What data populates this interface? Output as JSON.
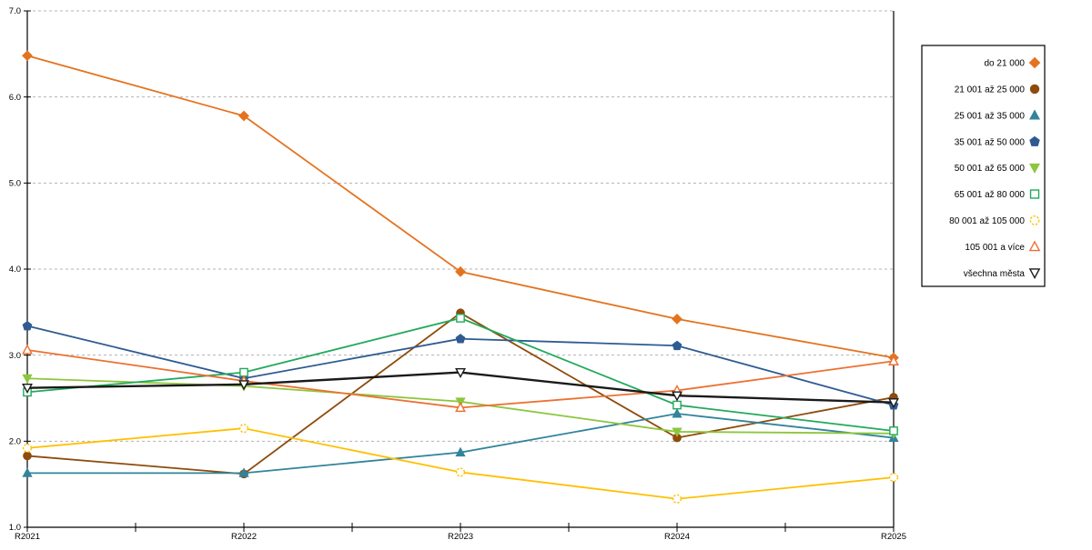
{
  "chart_data": {
    "type": "line",
    "title": "",
    "xlabel": "",
    "ylabel": "",
    "x_categories": [
      "R2021",
      "R2022",
      "R2023",
      "R2024",
      "R2025"
    ],
    "y_tick_labels": [
      "1.0",
      "2.0",
      "3.0",
      "4.0",
      "5.0",
      "6.0",
      "7.0"
    ],
    "ylim": [
      1.0,
      7.0
    ],
    "grid": "horizontal-dashed",
    "legend_position": "right",
    "gridline_color": "#b3b3b3",
    "axis_color": "#000000",
    "series": [
      {
        "name": "do 21 000",
        "color": "#e4731f",
        "marker": "diamond",
        "fill": "filled",
        "line_width": 1.8,
        "values": [
          6.48,
          5.78,
          3.97,
          3.42,
          2.97
        ]
      },
      {
        "name": "21 001 až 25 000",
        "color": "#8e4b0b",
        "marker": "circle",
        "fill": "filled",
        "line_width": 1.8,
        "values": [
          1.83,
          1.62,
          3.49,
          2.04,
          2.51
        ]
      },
      {
        "name": "25 001 až 35 000",
        "color": "#31849b",
        "marker": "triangle-up",
        "fill": "filled",
        "line_width": 1.8,
        "values": [
          1.63,
          1.63,
          1.87,
          2.32,
          2.04
        ]
      },
      {
        "name": "35 001 až 50 000",
        "color": "#2f5b91",
        "marker": "pentagon",
        "fill": "filled",
        "line_width": 1.8,
        "values": [
          3.34,
          2.73,
          3.19,
          3.11,
          2.42
        ]
      },
      {
        "name": "50 001 až 65 000",
        "color": "#8cc63e",
        "marker": "triangle-down",
        "fill": "filled",
        "line_width": 1.8,
        "values": [
          2.73,
          2.64,
          2.46,
          2.11,
          2.09
        ]
      },
      {
        "name": "65 001 až 80 000",
        "color": "#22a95b",
        "marker": "square",
        "fill": "open",
        "line_width": 1.8,
        "values": [
          2.57,
          2.8,
          3.43,
          2.42,
          2.12
        ]
      },
      {
        "name": "80 001 až 105 000",
        "color": "#ffc000",
        "marker": "circle",
        "fill": "open-dashed",
        "line_width": 1.8,
        "values": [
          1.92,
          2.15,
          1.64,
          1.33,
          1.58
        ]
      },
      {
        "name": "105 001 a více",
        "color": "#ed7031",
        "marker": "triangle-up",
        "fill": "open",
        "line_width": 1.8,
        "values": [
          3.06,
          2.7,
          2.39,
          2.59,
          2.93
        ]
      },
      {
        "name": "všechna města",
        "color": "#1a1a1a",
        "marker": "triangle-down",
        "fill": "open",
        "line_width": 2.4,
        "values": [
          2.62,
          2.66,
          2.8,
          2.53,
          2.45
        ]
      }
    ]
  }
}
